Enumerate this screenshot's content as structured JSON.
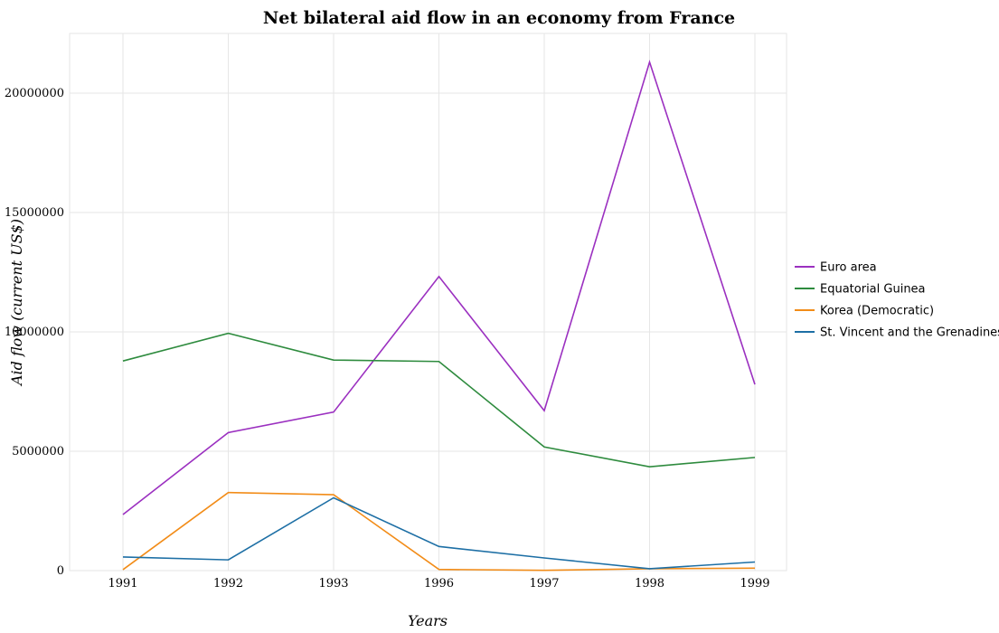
{
  "chart_data": {
    "type": "line",
    "title": "Net bilateral aid flow in an economy from France",
    "xlabel": "Years",
    "ylabel": "Aid flow (current US$)",
    "categories": [
      "1991",
      "1992",
      "1993",
      "1996",
      "1997",
      "1998",
      "1999"
    ],
    "ylim": [
      0,
      22500000
    ],
    "yticks": [
      0,
      5000000,
      10000000,
      15000000,
      20000000
    ],
    "ytick_labels": [
      "0",
      "5000000",
      "10000000",
      "15000000",
      "20000000"
    ],
    "grid": true,
    "legend_position": "right",
    "series": [
      {
        "name": "Euro area",
        "color": "#9b30c0",
        "values": [
          2350000,
          5780000,
          6640000,
          12320000,
          6700000,
          21300000,
          7800000
        ]
      },
      {
        "name": "Equatorial Guinea",
        "color": "#2e8b3e",
        "values": [
          8780000,
          9940000,
          8820000,
          8760000,
          5180000,
          4350000,
          4740000
        ]
      },
      {
        "name": "Korea (Democratic)",
        "color": "#f28c18",
        "values": [
          40000,
          3270000,
          3180000,
          50000,
          10000,
          80000,
          100000
        ]
      },
      {
        "name": "St. Vincent and the Grenadines",
        "color": "#1d6fa5",
        "values": [
          570000,
          450000,
          3050000,
          1010000,
          530000,
          80000,
          360000
        ]
      }
    ]
  }
}
